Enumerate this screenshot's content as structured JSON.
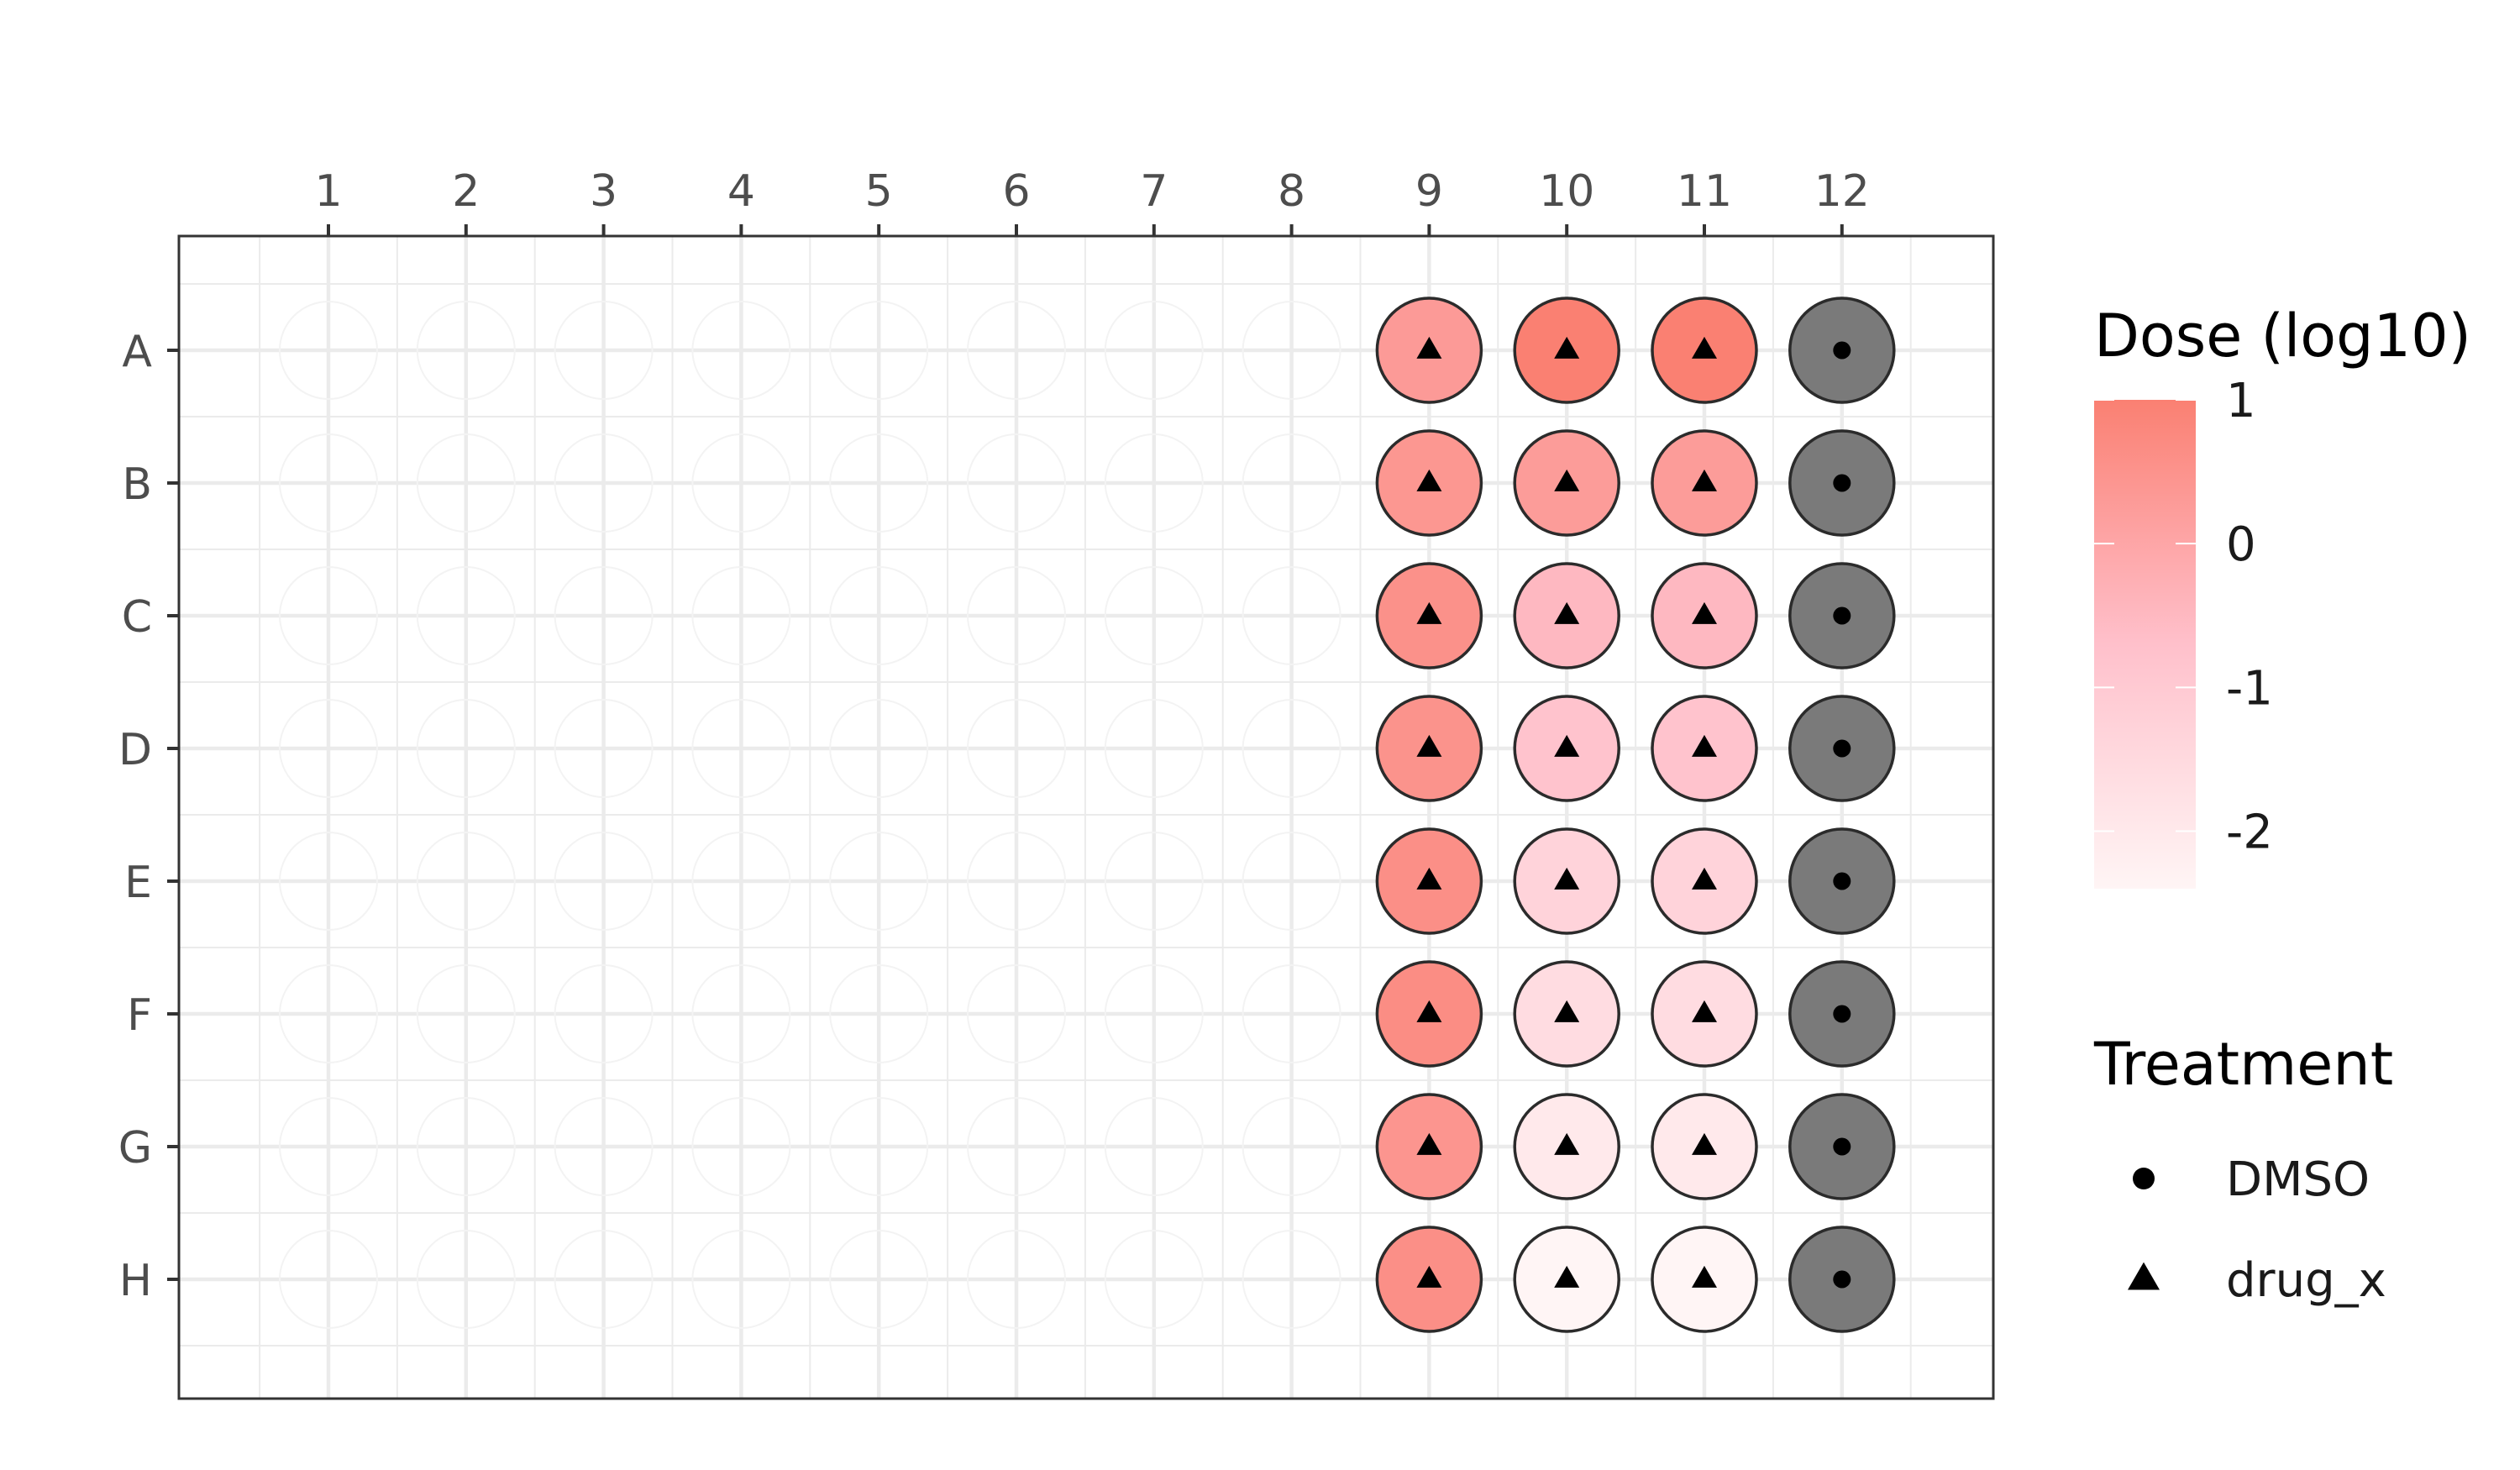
{
  "chart_data": {
    "type": "scatter",
    "title": "",
    "xlabel": "",
    "ylabel": "",
    "x_position": "top",
    "columns": [
      "1",
      "2",
      "3",
      "4",
      "5",
      "6",
      "7",
      "8",
      "9",
      "10",
      "11",
      "12"
    ],
    "rows": [
      "A",
      "B",
      "C",
      "D",
      "E",
      "F",
      "G",
      "H"
    ],
    "grid": true,
    "legend_position": "right",
    "empty_well_columns": [
      "1",
      "2",
      "3",
      "4",
      "5",
      "6",
      "7",
      "8"
    ],
    "color_scale": {
      "title": "Dose (log10)",
      "low_color": "#fff5f5",
      "mid_color": "#ffc0cb",
      "high_color": "#fa8072",
      "min": -2.4,
      "max": 1.0,
      "breaks": [
        1,
        0,
        -1,
        -2
      ],
      "break_labels": [
        "1",
        "0",
        "-1",
        "-2"
      ]
    },
    "shape_legend": {
      "title": "Treatment",
      "items": [
        {
          "label": "DMSO",
          "shape": "circle"
        },
        {
          "label": "drug_x",
          "shape": "triangle"
        }
      ]
    },
    "na_fill_color": "#7a7a7a",
    "series": [
      {
        "name": "drug_x",
        "shape": "triangle",
        "points": [
          {
            "col": "9",
            "row": "A",
            "dose_log10": 0.3
          },
          {
            "col": "9",
            "row": "B",
            "dose_log10": 0.4
          },
          {
            "col": "9",
            "row": "C",
            "dose_log10": 0.55
          },
          {
            "col": "9",
            "row": "D",
            "dose_log10": 0.5
          },
          {
            "col": "9",
            "row": "E",
            "dose_log10": 0.6
          },
          {
            "col": "9",
            "row": "F",
            "dose_log10": 0.65
          },
          {
            "col": "9",
            "row": "G",
            "dose_log10": 0.45
          },
          {
            "col": "9",
            "row": "H",
            "dose_log10": 0.6
          },
          {
            "col": "10",
            "row": "A",
            "dose_log10": 1.0
          },
          {
            "col": "10",
            "row": "B",
            "dose_log10": 0.25
          },
          {
            "col": "10",
            "row": "C",
            "dose_log10": -0.5
          },
          {
            "col": "10",
            "row": "D",
            "dose_log10": -0.8
          },
          {
            "col": "10",
            "row": "E",
            "dose_log10": -1.3
          },
          {
            "col": "10",
            "row": "F",
            "dose_log10": -1.6
          },
          {
            "col": "10",
            "row": "G",
            "dose_log10": -2.0
          },
          {
            "col": "10",
            "row": "H",
            "dose_log10": -2.4
          },
          {
            "col": "11",
            "row": "A",
            "dose_log10": 1.0
          },
          {
            "col": "11",
            "row": "B",
            "dose_log10": 0.25
          },
          {
            "col": "11",
            "row": "C",
            "dose_log10": -0.5
          },
          {
            "col": "11",
            "row": "D",
            "dose_log10": -0.8
          },
          {
            "col": "11",
            "row": "E",
            "dose_log10": -1.3
          },
          {
            "col": "11",
            "row": "F",
            "dose_log10": -1.6
          },
          {
            "col": "11",
            "row": "G",
            "dose_log10": -2.0
          },
          {
            "col": "11",
            "row": "H",
            "dose_log10": -2.4
          }
        ]
      },
      {
        "name": "DMSO",
        "shape": "circle",
        "points": [
          {
            "col": "12",
            "row": "A",
            "dose_log10": null
          },
          {
            "col": "12",
            "row": "B",
            "dose_log10": null
          },
          {
            "col": "12",
            "row": "C",
            "dose_log10": null
          },
          {
            "col": "12",
            "row": "D",
            "dose_log10": null
          },
          {
            "col": "12",
            "row": "E",
            "dose_log10": null
          },
          {
            "col": "12",
            "row": "F",
            "dose_log10": null
          },
          {
            "col": "12",
            "row": "G",
            "dose_log10": null
          },
          {
            "col": "12",
            "row": "H",
            "dose_log10": null
          }
        ]
      }
    ]
  }
}
